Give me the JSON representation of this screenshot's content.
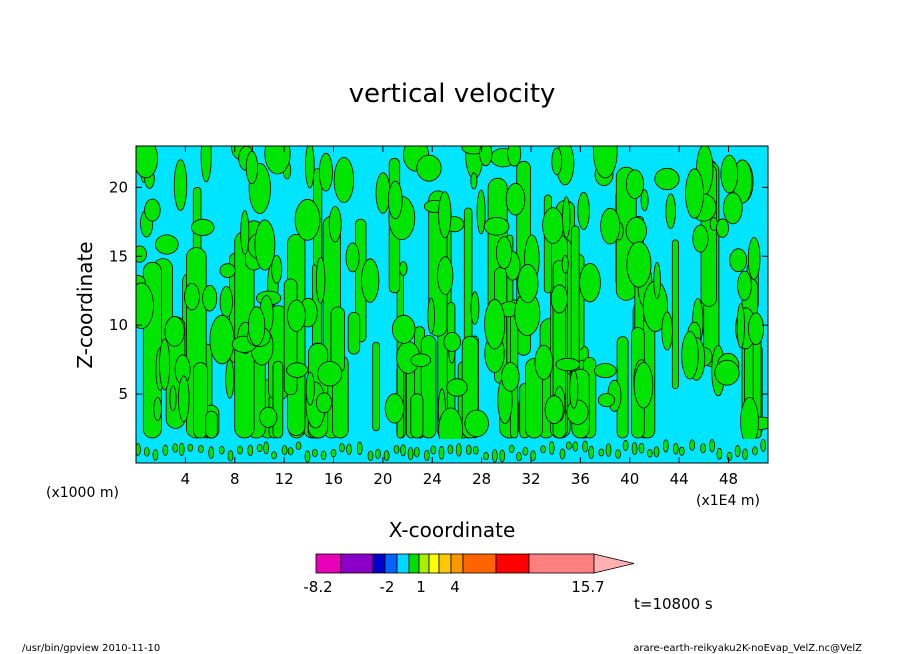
{
  "chart_data": {
    "type": "heatmap",
    "title": "vertical velocity",
    "xlabel": "X-coordinate",
    "ylabel": "Z-coordinate",
    "x_unit_left": "(x1000 m)",
    "x_unit_right": "(x1E4 m)",
    "x_ticks": [
      4,
      8,
      12,
      16,
      20,
      24,
      28,
      32,
      36,
      40,
      44,
      48
    ],
    "y_ticks": [
      5,
      10,
      15,
      20
    ],
    "xlim": [
      0,
      51.2
    ],
    "ylim": [
      0,
      23
    ],
    "colorbar": {
      "tick_labels": [
        "-8.2",
        "-2",
        "1",
        "4",
        "15.7"
      ],
      "colors": [
        "#e800b8",
        "#8a00c8",
        "#0000c8",
        "#0064ff",
        "#00d8ff",
        "#00e000",
        "#a8f000",
        "#ffff00",
        "#ffc800",
        "#ff9600",
        "#ff6400",
        "#ff0000",
        "#ff8080",
        "#ffb0b0"
      ]
    },
    "field_colors": {
      "positive": "#00e500",
      "negative": "#00e5ff"
    },
    "time_label": "t=10800 s"
  },
  "footer": {
    "left": "/usr/bin/gpview   2010-11-10",
    "right": "arare-earth-reikyaku2K-noEvap_VelZ.nc@VelZ"
  }
}
